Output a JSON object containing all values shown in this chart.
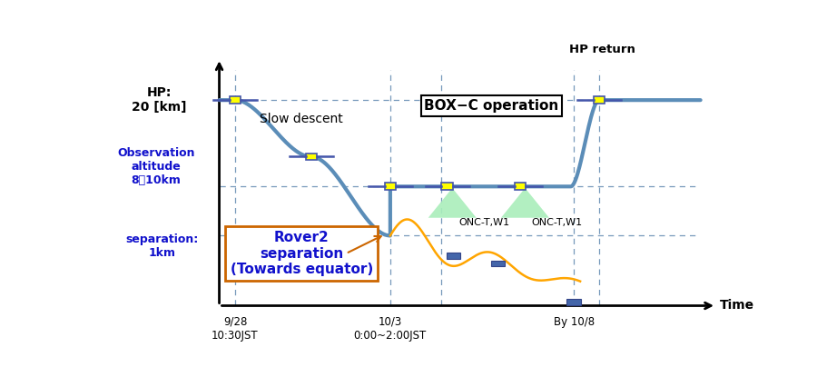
{
  "bg_color": "#ffffff",
  "blue_line_color": "#5b8db8",
  "orange_line_color": "#ffa500",
  "grid_color": "#7799bb",
  "text_blue": "#1111cc",
  "spacecraft_color": "#ffff00",
  "spacecraft_edge": "#4455aa",
  "rover_color": "#4477aa",
  "title_hp_return": "HP return",
  "label_hp": "HP:\n20 [km]",
  "label_obs": "Observation\naltitude\n8～10km",
  "label_sep": "separation:\n1km",
  "label_time": "Time",
  "label_slow": "Slow descent",
  "label_box": "BOX−C operation",
  "label_rover2": "Rover2\nseparation\n(Towards equator)",
  "label_onc1": "ONC-T,W1",
  "label_onc2": "ONC-T,W1",
  "xtick_labels": [
    "9/28\n10:30JST",
    "10/3\n0:00~2:00JST",
    "By 10/8"
  ],
  "figsize": [
    9.0,
    4.26
  ],
  "dpi": 100
}
